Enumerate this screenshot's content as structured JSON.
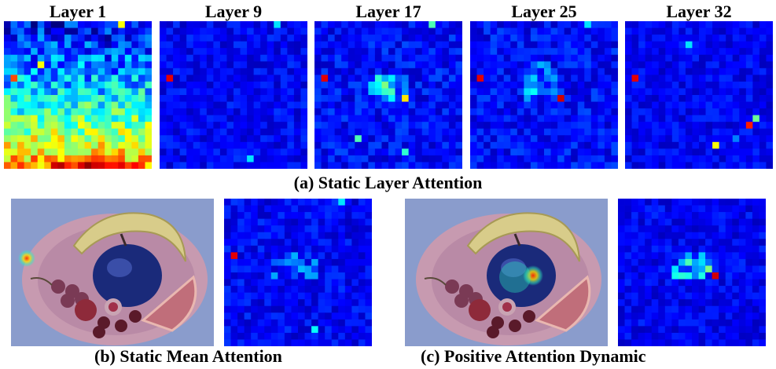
{
  "row1": {
    "titles": [
      "Layer 1",
      "Layer 9",
      "Layer 17",
      "Layer 25",
      "Layer 32"
    ],
    "caption": "(a) Static Layer Attention"
  },
  "row2": {
    "caption_b": "(b) Static Mean Attention",
    "caption_c": "(c) Positive Attention Dynamic"
  },
  "colors": {
    "heatmap_low": "#0a14b4",
    "heatmap_high": "#8b0000",
    "photo_background": "#8a9ccc",
    "plate": "#cfa3b6"
  }
}
